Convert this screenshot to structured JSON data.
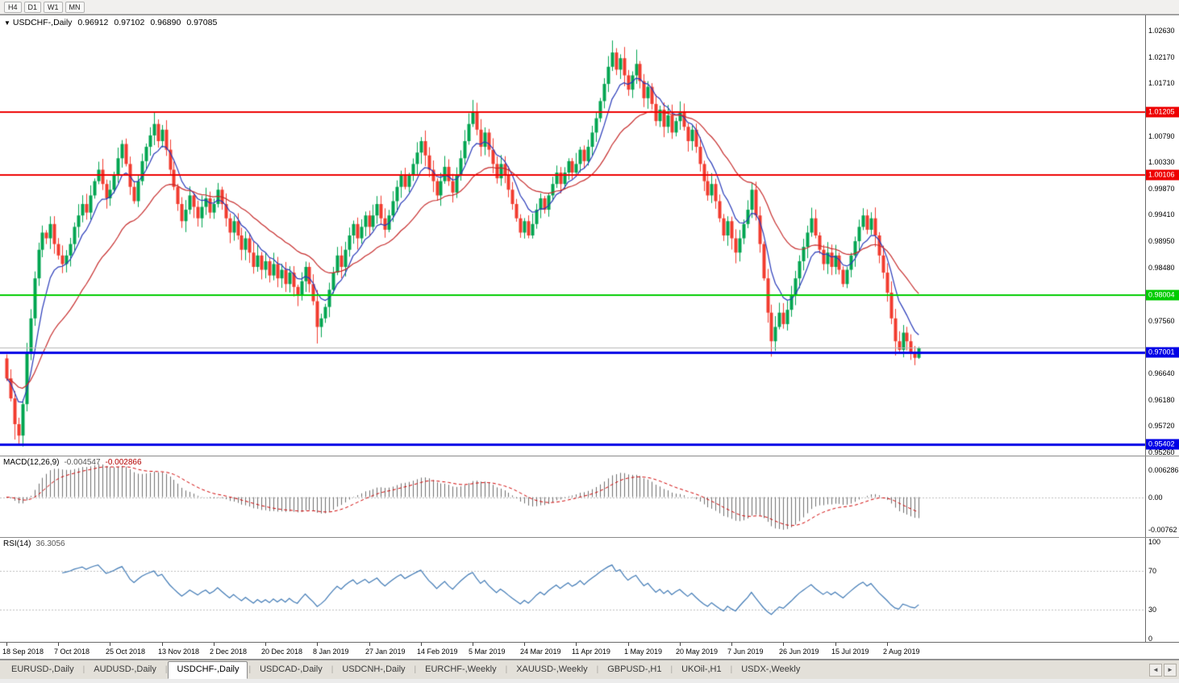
{
  "toolbar": {
    "timeframes": [
      "H4",
      "D1",
      "W1",
      "MN"
    ]
  },
  "icons": {
    "dropdown": "▼",
    "tab_scroll_left": "◄",
    "tab_scroll_right": "►"
  },
  "main_chart": {
    "title": {
      "symbol": "USDCHF-,Daily",
      "open": "0.96912",
      "high": "0.97102",
      "low": "0.96890",
      "close": "0.97085"
    }
  },
  "indicators": {
    "macd": {
      "name": "MACD(12,26,9)",
      "value_main": "-0.004547",
      "value_signal": "-0.002866"
    },
    "rsi": {
      "name": "RSI(14)",
      "value": "36.3056"
    }
  },
  "tabs": {
    "active": "USDCHF-,Daily",
    "items": [
      "EURUSD-,Daily",
      "AUDUSD-,Daily",
      "USDCHF-,Daily",
      "USDCAD-,Daily",
      "USDCNH-,Daily",
      "EURCHF-,Weekly",
      "XAUUSD-,Weekly",
      "GBPUSD-,H1",
      "UKOil-,H1",
      "USDX-,Weekly"
    ]
  },
  "chart_data": {
    "type": "candlestick",
    "title": "USDCHF-,Daily",
    "last_ohlc": {
      "open": 0.96912,
      "high": 0.97102,
      "low": 0.9689,
      "close": 0.97085
    },
    "price_range": {
      "min": 0.952,
      "max": 1.029
    },
    "y_ticks": [
      "1.02630",
      "1.02170",
      "1.01710",
      "1.00790",
      "1.00330",
      "0.99870",
      "0.99410",
      "0.98950",
      "0.98480",
      "0.97560",
      "0.96640",
      "0.96180",
      "0.95720",
      "0.95260"
    ],
    "levels": [
      {
        "price": 1.01205,
        "label": "1.01205",
        "color": "#ee0000",
        "width": 2
      },
      {
        "price": 1.00106,
        "label": "1.00106",
        "color": "#ee0000",
        "width": 2
      },
      {
        "price": 0.98004,
        "label": "0.98004",
        "color": "#00cc00",
        "width": 2
      },
      {
        "price": 0.97001,
        "label": "0.97001",
        "color": "#0000e6",
        "width": 3
      },
      {
        "price": 0.95402,
        "label": "0.95402",
        "color": "#0000e6",
        "width": 3
      }
    ],
    "last_price": 0.97085,
    "x_labels": [
      "18 Sep 2018",
      "7 Oct 2018",
      "25 Oct 2018",
      "13 Nov 2018",
      "2 Dec 2018",
      "20 Dec 2018",
      "8 Jan 2019",
      "27 Jan 2019",
      "14 Feb 2019",
      "5 Mar 2019",
      "24 Mar 2019",
      "11 Apr 2019",
      "1 May 2019",
      "20 May 2019",
      "7 Jun 2019",
      "26 Jun 2019",
      "15 Jul 2019",
      "2 Aug 2019"
    ],
    "bars_per_label": 13,
    "first_open": 0.969,
    "closes": [
      0.9655,
      0.962,
      0.9575,
      0.9555,
      0.961,
      0.97,
      0.976,
      0.983,
      0.988,
      0.991,
      0.99,
      0.9925,
      0.989,
      0.987,
      0.9855,
      0.987,
      0.989,
      0.992,
      0.994,
      0.996,
      0.9945,
      0.9975,
      1.0,
      1.002,
      0.9995,
      0.997,
      0.9985,
      1.001,
      1.004,
      1.0065,
      1.003,
      0.999,
      0.9965,
      1.0,
      1.0035,
      1.006,
      1.008,
      1.01,
      1.007,
      1.009,
      1.0055,
      1.002,
      0.999,
      0.996,
      0.993,
      0.995,
      0.9975,
      0.9955,
      0.9935,
      0.9955,
      0.997,
      0.9945,
      0.996,
      0.9985,
      0.996,
      0.9935,
      0.991,
      0.993,
      0.9905,
      0.988,
      0.99,
      0.9875,
      0.985,
      0.987,
      0.9845,
      0.986,
      0.9835,
      0.9855,
      0.983,
      0.9845,
      0.982,
      0.984,
      0.9815,
      0.98,
      0.9825,
      0.985,
      0.982,
      0.979,
      0.9745,
      0.976,
      0.978,
      0.981,
      0.984,
      0.987,
      0.985,
      0.988,
      0.9905,
      0.9925,
      0.99,
      0.992,
      0.994,
      0.992,
      0.994,
      0.996,
      0.9935,
      0.9915,
      0.994,
      0.9965,
      0.999,
      1.001,
      0.999,
      1.001,
      1.003,
      1.005,
      1.007,
      1.0045,
      1.002,
      1.0,
      0.9975,
      1.0,
      1.0025,
      1.0,
      0.998,
      1.001,
      1.004,
      1.007,
      1.01,
      1.012,
      1.009,
      1.006,
      1.0085,
      1.0055,
      1.003,
      1.0005,
      1.003,
      1.001,
      0.9985,
      0.996,
      0.9935,
      0.991,
      0.993,
      0.9905,
      0.9925,
      0.995,
      0.997,
      0.995,
      0.9975,
      0.9995,
      1.0015,
      0.9995,
      1.0015,
      1.0035,
      1.0015,
      1.003,
      1.0055,
      1.0035,
      1.006,
      1.0085,
      1.011,
      1.014,
      1.017,
      1.02,
      1.0225,
      1.0195,
      1.0215,
      1.0185,
      1.016,
      1.0185,
      1.0205,
      1.0175,
      1.0145,
      1.0165,
      1.0135,
      1.0105,
      1.0125,
      1.0095,
      1.0115,
      1.0085,
      1.0105,
      1.012,
      1.0095,
      1.007,
      1.009,
      1.006,
      1.003,
      1.0,
      0.9975,
      0.9995,
      0.9965,
      0.9935,
      0.9905,
      0.993,
      0.99,
      0.9875,
      0.99,
      0.9925,
      0.995,
      0.9985,
      0.994,
      0.989,
      0.983,
      0.977,
      0.972,
      0.9745,
      0.977,
      0.975,
      0.9775,
      0.98,
      0.983,
      0.986,
      0.9885,
      0.991,
      0.9935,
      0.9905,
      0.988,
      0.9855,
      0.9875,
      0.985,
      0.987,
      0.9845,
      0.982,
      0.9845,
      0.987,
      0.9895,
      0.992,
      0.994,
      0.9915,
      0.9935,
      0.9905,
      0.987,
      0.984,
      0.9805,
      0.976,
      0.972,
      0.9705,
      0.9735,
      0.972,
      0.97,
      0.9691,
      0.97085
    ],
    "high_overrides": {
      "37": 1.0122,
      "117": 1.0142,
      "152": 1.0246,
      "158": 1.023,
      "229": 0.97102
    },
    "low_overrides": {
      "2": 0.9548,
      "3": 0.9538,
      "78": 0.9716,
      "192": 0.9693,
      "223": 0.9695,
      "229": 0.9689
    },
    "moving_averages": [
      {
        "type": "ema",
        "period": 8,
        "color": "#2638b8"
      },
      {
        "type": "ema",
        "period": 26,
        "color": "#c62b2b"
      }
    ],
    "macd": {
      "fast": 12,
      "slow": 26,
      "signal": 9,
      "ticks": [
        "0.006286",
        "0.00",
        "-0.00762"
      ],
      "range": {
        "min": -0.0095,
        "max": 0.0095
      }
    },
    "rsi": {
      "period": 14,
      "ticks": [
        "100",
        "70",
        "30",
        "0"
      ],
      "levels": [
        70,
        30
      ],
      "range": {
        "min": -4,
        "max": 104
      }
    },
    "colors": {
      "bull": "#00a550",
      "bear": "#f23b2e",
      "macd_hist": "#6e6e6e",
      "macd_signal": "#cf0000",
      "rsi_line": "#3e78b4",
      "last_price_line": "#b8b8b8",
      "grid_dotted": "#bdbdbd"
    }
  }
}
